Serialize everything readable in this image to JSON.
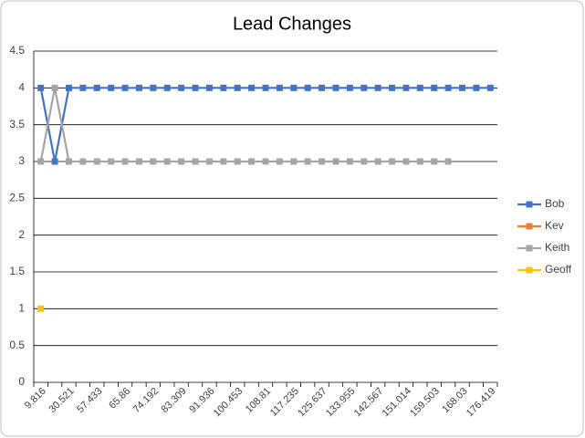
{
  "chart_data": {
    "type": "line",
    "title": "Lead Changes",
    "categories": [
      "9.816",
      null,
      "30.521",
      null,
      "57.433",
      null,
      "65.86",
      null,
      "74.192",
      null,
      "83.309",
      null,
      "91.936",
      null,
      "100.453",
      null,
      "108.81",
      null,
      "117.235",
      null,
      "125.637",
      null,
      "133.955",
      null,
      "142.567",
      null,
      "151.014",
      null,
      "159.503",
      null,
      "168.03",
      null,
      "176.419"
    ],
    "series": [
      {
        "name": "Bob",
        "color": "#4472c4",
        "values": [
          4,
          3,
          4,
          4,
          4,
          4,
          4,
          4,
          4,
          4,
          4,
          4,
          4,
          4,
          4,
          4,
          4,
          4,
          4,
          4,
          4,
          4,
          4,
          4,
          4,
          4,
          4,
          4,
          4,
          4,
          4,
          4,
          4
        ]
      },
      {
        "name": "Kev",
        "color": "#ed7d31",
        "values": [
          null,
          null,
          null,
          null,
          null,
          null,
          null,
          null,
          null,
          null,
          null,
          null,
          null,
          null,
          null,
          null,
          null,
          null,
          null,
          null,
          null,
          null,
          null,
          null,
          null,
          null,
          null,
          null,
          null,
          null,
          null,
          null,
          null
        ]
      },
      {
        "name": "Keith",
        "color": "#a5a5a5",
        "values": [
          3,
          4,
          3,
          3,
          3,
          3,
          3,
          3,
          3,
          3,
          3,
          3,
          3,
          3,
          3,
          3,
          3,
          3,
          3,
          3,
          3,
          3,
          3,
          3,
          3,
          3,
          3,
          3,
          3,
          3,
          null,
          null,
          null
        ]
      },
      {
        "name": "Geoff",
        "color": "#ffc000",
        "values": [
          1,
          null,
          null,
          null,
          null,
          null,
          null,
          null,
          null,
          null,
          null,
          null,
          null,
          null,
          null,
          null,
          null,
          null,
          null,
          null,
          null,
          null,
          null,
          null,
          null,
          null,
          null,
          null,
          null,
          null,
          null,
          null,
          null
        ]
      }
    ],
    "ylim": [
      0,
      4.5
    ],
    "yticks": [
      0,
      0.5,
      1,
      1.5,
      2,
      2.5,
      3,
      3.5,
      4,
      4.5
    ],
    "grid": true,
    "legend": "right"
  }
}
